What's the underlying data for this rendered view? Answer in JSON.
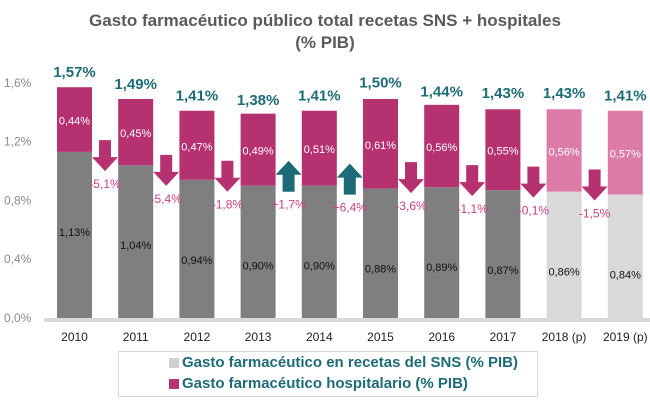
{
  "chart_data": {
    "type": "bar",
    "stacked": true,
    "title": "Gasto farmacéutico público total recetas SNS + hospitales",
    "subtitle": "(% PIB)",
    "categories": [
      "2010",
      "2011",
      "2012",
      "2013",
      "2014",
      "2015",
      "2016",
      "2017",
      "2018 (p)",
      "2019 (p)"
    ],
    "series": [
      {
        "name": "Gasto farmacéutico en recetas del SNS (% PIB)",
        "values": [
          1.13,
          1.04,
          0.94,
          0.9,
          0.9,
          0.88,
          0.89,
          0.87,
          0.86,
          0.84
        ],
        "labels": [
          "1,13%",
          "1,04%",
          "0,94%",
          "0,90%",
          "0,90%",
          "0,88%",
          "0,89%",
          "0,87%",
          "0,86%",
          "0,84%"
        ],
        "color": "#7f7f7f",
        "projected_color": "#d9d9d9"
      },
      {
        "name": "Gasto farmacéutico hospitalario (% PIB)",
        "values": [
          0.44,
          0.45,
          0.47,
          0.49,
          0.51,
          0.61,
          0.56,
          0.55,
          0.56,
          0.57
        ],
        "labels": [
          "0,44%",
          "0,45%",
          "0,47%",
          "0,49%",
          "0,51%",
          "0,61%",
          "0,56%",
          "0,55%",
          "0,56%",
          "0,57%"
        ],
        "color": "#b5316f",
        "projected_color": "#dc7aa8"
      }
    ],
    "totals": [
      1.57,
      1.49,
      1.41,
      1.38,
      1.41,
      1.5,
      1.44,
      1.43,
      1.43,
      1.41
    ],
    "total_labels": [
      "1,57%",
      "1,49%",
      "1,41%",
      "1,38%",
      "1,41%",
      "1,50%",
      "1,44%",
      "1,43%",
      "1,43%",
      "1,41%"
    ],
    "changes": [
      -5.1,
      -5.4,
      -1.8,
      1.7,
      6.4,
      -3.6,
      -1.1,
      -0.1,
      -1.5
    ],
    "change_labels": [
      "-5,1%",
      "-5,4%",
      "-1,8%",
      "+1,7%",
      "+6,4%",
      "-3,6%",
      "-1,1%",
      "-0,1%",
      "-1,5%"
    ],
    "projected": [
      false,
      false,
      false,
      false,
      false,
      false,
      false,
      false,
      true,
      true
    ],
    "ylim": [
      0,
      1.6
    ],
    "yticks": [
      0,
      0.4,
      0.8,
      1.2,
      1.6
    ],
    "ytick_labels": [
      "0,0%",
      "0,4%",
      "0,8%",
      "1,2%",
      "1,6%"
    ],
    "colors": {
      "total": "#1d6b76",
      "down": "#b5316f",
      "up": "#1d6b76",
      "change_text": "#c8417f"
    },
    "legend_position": "bottom"
  }
}
